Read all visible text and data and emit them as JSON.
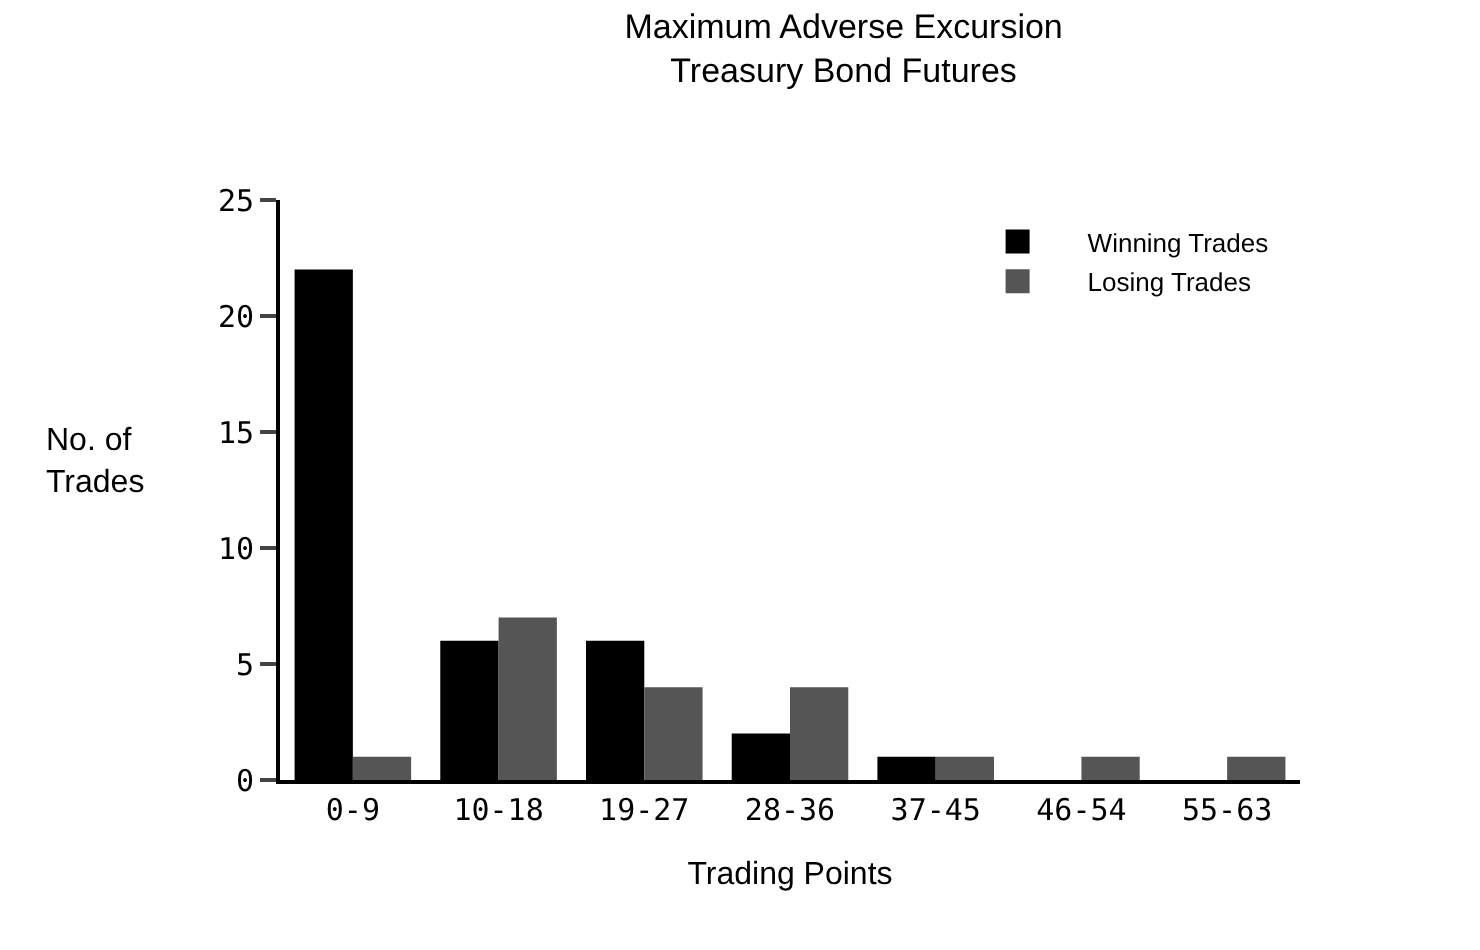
{
  "chart_data": {
    "type": "bar",
    "title": "Maximum Adverse Excursion\nTreasury Bond Futures",
    "xlabel": "Trading Points",
    "ylabel": "No. of\nTrades",
    "categories": [
      "0-9",
      "10-18",
      "19-27",
      "28-36",
      "37-45",
      "46-54",
      "55-63"
    ],
    "series": [
      {
        "name": "Winning Trades",
        "color": "#000000",
        "values": [
          22,
          6,
          6,
          2,
          1,
          0,
          0
        ]
      },
      {
        "name": "Losing Trades",
        "color": "#555555",
        "values": [
          1,
          7,
          4,
          4,
          1,
          1,
          1
        ]
      }
    ],
    "ylim": [
      0,
      25
    ],
    "yticks": [
      0,
      5,
      10,
      15,
      20,
      25
    ],
    "grid": false,
    "legend": "top right"
  }
}
